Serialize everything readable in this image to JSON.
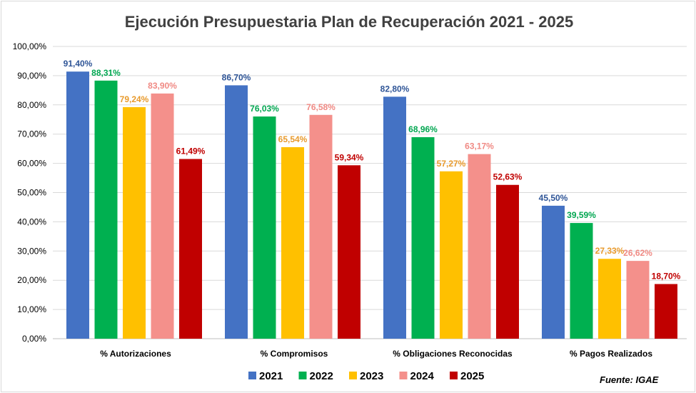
{
  "chart_data": {
    "type": "bar",
    "title": "Ejecución Presupuestaria Plan de Recuperación 2021 - 2025",
    "categories": [
      "% Autorizaciones",
      "% Compromisos",
      "% Obligaciones Reconocidas",
      "% Pagos Realizados"
    ],
    "series": [
      {
        "name": "2021",
        "color": "#4472c4",
        "label_color": "#2f5597",
        "values": [
          91.4,
          86.7,
          82.8,
          45.5
        ]
      },
      {
        "name": "2022",
        "color": "#00b050",
        "label_color": "#00a650",
        "values": [
          88.31,
          76.03,
          68.96,
          39.59
        ]
      },
      {
        "name": "2023",
        "color": "#ffc000",
        "label_color": "#e89a2c",
        "values": [
          79.24,
          65.54,
          57.27,
          27.33
        ]
      },
      {
        "name": "2024",
        "color": "#f4908b",
        "label_color": "#f08a84",
        "values": [
          83.9,
          76.58,
          63.17,
          26.62
        ]
      },
      {
        "name": "2025",
        "color": "#c00000",
        "label_color": "#c00000",
        "values": [
          61.49,
          59.34,
          52.63,
          18.7
        ]
      }
    ],
    "data_labels": [
      [
        "91,40%",
        "86,70%",
        "82,80%",
        "45,50%"
      ],
      [
        "88,31%",
        "76,03%",
        "68,96%",
        "39,59%"
      ],
      [
        "79,24%",
        "65,54%",
        "57,27%",
        "27,33%"
      ],
      [
        "83,90%",
        "76,58%",
        "63,17%",
        "26,62%"
      ],
      [
        "61,49%",
        "59,34%",
        "52,63%",
        "18,70%"
      ]
    ],
    "y_ticks": [
      0,
      10,
      20,
      30,
      40,
      50,
      60,
      70,
      80,
      90,
      100
    ],
    "y_tick_labels": [
      "0,00%",
      "10,00%",
      "20,00%",
      "30,00%",
      "40,00%",
      "50,00%",
      "60,00%",
      "70,00%",
      "80,00%",
      "90,00%",
      "100,00%"
    ],
    "ylim": [
      0,
      100
    ],
    "grid": true,
    "legend_position": "bottom",
    "xlabel": "",
    "ylabel": ""
  },
  "source": "Fuente: IGAE"
}
